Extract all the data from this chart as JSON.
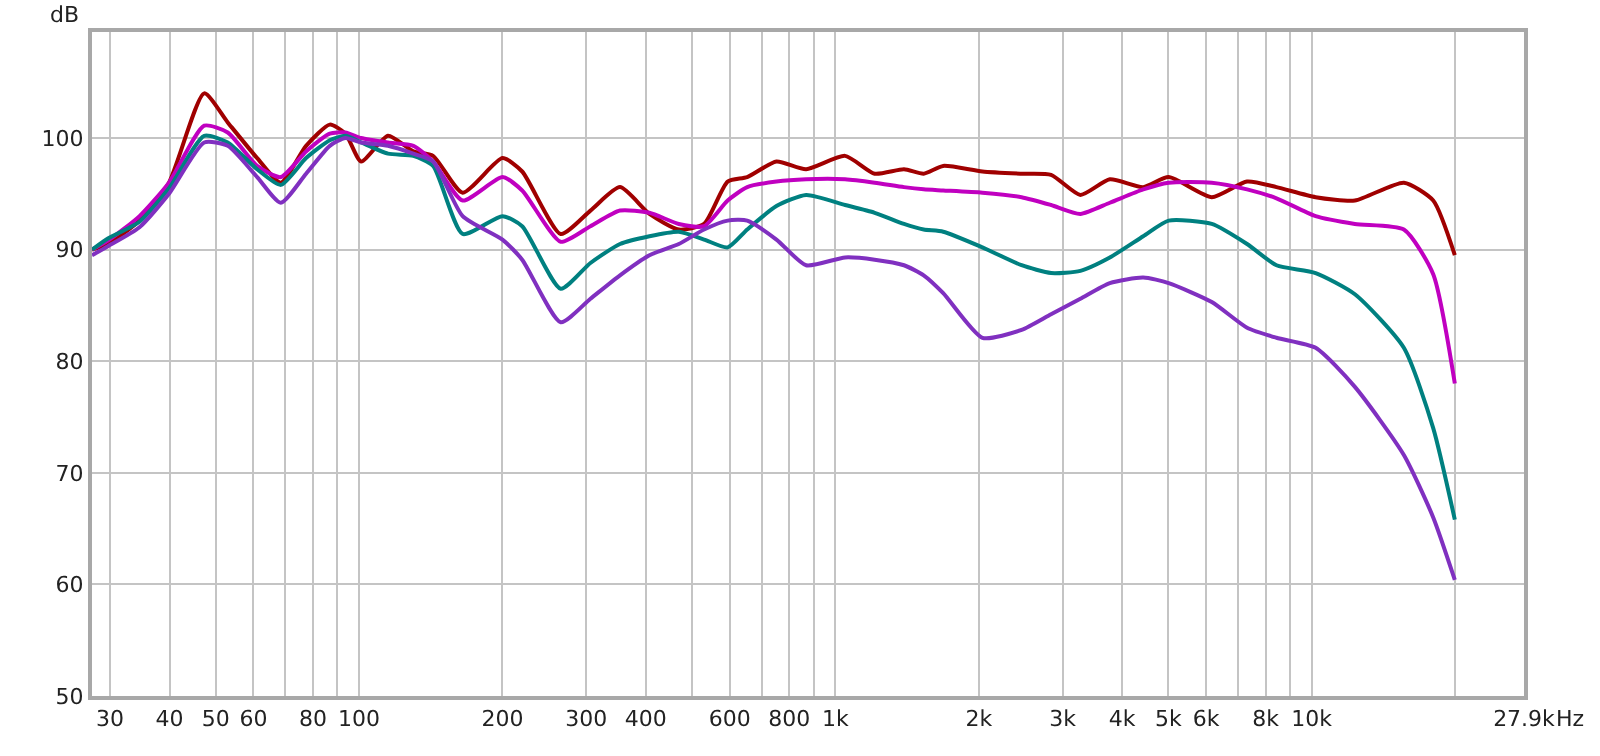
{
  "chart_data": {
    "type": "line",
    "ylabel": "dB",
    "log": "x",
    "grid": true,
    "marker": "none",
    "line_style": "solid",
    "x": [
      27.5,
      29.7,
      34.6,
      39.9,
      47.3,
      53.0,
      61.1,
      68.5,
      77.4,
      86.8,
      93.6,
      101,
      115,
      130,
      143,
      165,
      200,
      220,
      265,
      306,
      353,
      407,
      469,
      530,
      594,
      653,
      752,
      868,
      1048,
      1209,
      1393,
      1532,
      1684,
      2035,
      2460,
      2836,
      3268,
      3768,
      4428,
      5008,
      6168,
      7315,
      8433,
      10190,
      12320,
      15610,
      17990,
      19970
    ],
    "xlim": [
      27.5,
      27900
    ],
    "xticks": [
      30,
      40,
      50,
      60,
      {
        "value": 70,
        "label": null
      },
      80,
      {
        "value": 90,
        "label": null
      },
      100,
      200,
      300,
      400,
      {
        "value": 500,
        "label": null
      },
      600,
      {
        "value": 700,
        "label": null
      },
      800,
      {
        "value": 900,
        "label": null
      },
      {
        "value": 1000,
        "label": "1k"
      },
      {
        "value": 2000,
        "label": "2k"
      },
      {
        "value": 3000,
        "label": "3k"
      },
      {
        "value": 4000,
        "label": "4k"
      },
      {
        "value": 5000,
        "label": "5k"
      },
      {
        "value": 6000,
        "label": "6k"
      },
      {
        "value": 7000,
        "label": null
      },
      {
        "value": 8000,
        "label": "8k"
      },
      {
        "value": 9000,
        "label": null
      },
      {
        "value": 10000,
        "label": "10k"
      },
      {
        "value": 20000,
        "label": null
      },
      {
        "value": 27900,
        "label": "27.9k"
      }
    ],
    "xlabel": "Hz",
    "ylim": [
      50,
      109.5
    ],
    "yticks": [
      50,
      60,
      70,
      80,
      90,
      100
    ],
    "series": [
      {
        "color": "#a00000",
        "values": [
          90,
          90.5,
          92.6,
          96,
          104,
          101.4,
          98.2,
          96,
          99.3,
          101.2,
          100.4,
          97.9,
          100.2,
          98.8,
          98.4,
          95.1,
          98.2,
          97,
          91.4,
          93.5,
          95.6,
          93.2,
          91.8,
          92.3,
          96.1,
          96.5,
          97.9,
          97.2,
          98.4,
          96.8,
          97.2,
          96.8,
          97.5,
          97,
          96.8,
          96.7,
          94.9,
          96.3,
          95.6,
          96.5,
          94.7,
          96.1,
          95.6,
          94.7,
          94.4,
          96,
          94.4,
          89.5
        ]
      },
      {
        "color": "#c000c0",
        "values": [
          90,
          90.8,
          93,
          96,
          101.1,
          100.5,
          97.5,
          96.5,
          98.8,
          100.4,
          100.5,
          100,
          99.6,
          99.3,
          97.9,
          94.4,
          96.5,
          95.3,
          90.7,
          92.1,
          93.5,
          93.3,
          92.3,
          92.1,
          94.4,
          95.6,
          96.1,
          96.3,
          96.3,
          96,
          95.6,
          95.4,
          95.3,
          95.1,
          94.7,
          94,
          93.2,
          94.2,
          95.4,
          96,
          96,
          95.4,
          94.6,
          93,
          92.3,
          91.8,
          87.8,
          78
        ]
      },
      {
        "color": "#008080",
        "values": [
          90,
          91,
          92.5,
          95.5,
          100.2,
          99.6,
          97.2,
          95.8,
          98.2,
          99.8,
          100.2,
          99.6,
          98.6,
          98.4,
          97.5,
          91.4,
          93,
          92.1,
          86.5,
          88.8,
          90.5,
          91.2,
          91.6,
          90.9,
          90.2,
          91.8,
          93.9,
          94.9,
          94,
          93.3,
          92.3,
          91.8,
          91.6,
          90.2,
          88.6,
          87.9,
          88.1,
          89.3,
          91.2,
          92.6,
          92.3,
          90.5,
          88.6,
          87.9,
          86,
          81.2,
          74,
          65.8
        ]
      },
      {
        "color": "#8030c0",
        "values": [
          89.5,
          90.3,
          92,
          95,
          99.6,
          99.3,
          96.5,
          94.2,
          96.8,
          99.3,
          100,
          99.6,
          99.3,
          98.6,
          97.9,
          93,
          90.9,
          89.1,
          83.5,
          85.6,
          87.7,
          89.5,
          90.5,
          91.8,
          92.6,
          92.6,
          90.9,
          88.6,
          89.3,
          89.1,
          88.6,
          87.7,
          86.1,
          82.1,
          82.8,
          84.2,
          85.6,
          87,
          87.5,
          87,
          85.3,
          83,
          82.1,
          81.2,
          77.7,
          71.6,
          66,
          60.4
        ]
      }
    ]
  }
}
